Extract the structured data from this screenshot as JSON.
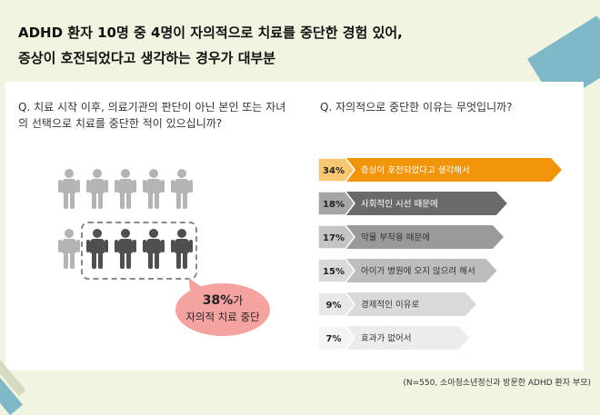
{
  "headline": {
    "line1": "ADHD 환자 10명 중 4명이 자의적으로 치료를 중단한 경험 있어,",
    "line2": "증상이 호전되었다고 생각하는 경우가 대부분"
  },
  "left": {
    "question": "Q. 치료 시작 이후, 의료기관의 판단이 아닌 본인 또는 자녀의 선택으로 치료를 중단한 적이 있으십니까?",
    "icon": "person-icon",
    "total_people": 10,
    "highlighted_people": 4,
    "callout_pct": "38%",
    "callout_suffix": "가",
    "callout_desc": "자의적 치료 중단"
  },
  "right": {
    "question": "Q. 자의적으로 중단한 이유는 무엇입니까?"
  },
  "chart_data": {
    "type": "bar",
    "orientation": "horizontal",
    "categories": [
      "증상이 호전되었다고 생각해서",
      "사회적인 시선 때문에",
      "약물 부작용 때문에",
      "아이가 병원에 오지 않으려 해서",
      "경제적인 이유로",
      "효과가 없어서"
    ],
    "values": [
      34,
      18,
      17,
      15,
      9,
      7
    ],
    "labels": [
      "34%",
      "18%",
      "17%",
      "15%",
      "9%",
      "7%"
    ],
    "colors": {
      "highlight": "#f0950a",
      "highlight_badge": "#f7c872",
      "bar_shades": [
        "#f0950a",
        "#6a6a6a",
        "#9a9a9a",
        "#bdbdbd",
        "#d9d9d9",
        "#ececec"
      ],
      "badge_shades": [
        "#f7c872",
        "#a5a5a5",
        "#c4c4c4",
        "#d9d9d9",
        "#e8e8e8",
        "#f4f4f4"
      ]
    }
  },
  "footnote": "(N=550, 소아청소년정신과 방문한 ADHD 환자 부모)"
}
